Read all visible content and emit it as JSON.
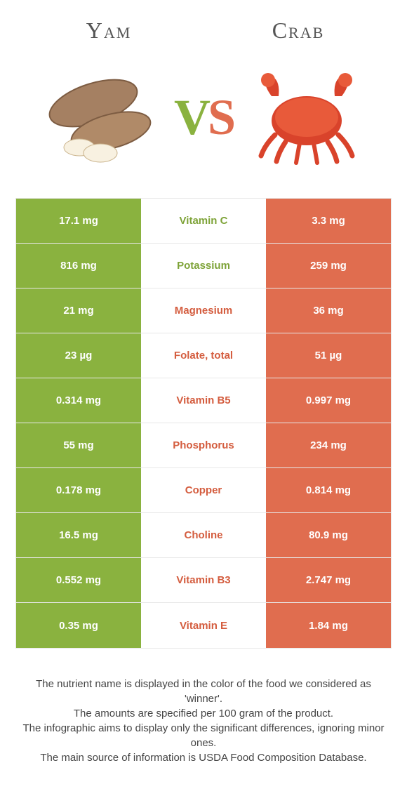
{
  "header": {
    "left": "Yam",
    "right": "Crab"
  },
  "vs": {
    "v": "V",
    "s": "S"
  },
  "colors": {
    "left": "#8ab23f",
    "right": "#e06d4f",
    "label_left": "#7ea338",
    "label_right": "#d45d3f"
  },
  "rows": [
    {
      "left": "17.1 mg",
      "label": "Vitamin C",
      "right": "3.3 mg",
      "winner": "left"
    },
    {
      "left": "816 mg",
      "label": "Potassium",
      "right": "259 mg",
      "winner": "left"
    },
    {
      "left": "21 mg",
      "label": "Magnesium",
      "right": "36 mg",
      "winner": "right"
    },
    {
      "left": "23 µg",
      "label": "Folate, total",
      "right": "51 µg",
      "winner": "right"
    },
    {
      "left": "0.314 mg",
      "label": "Vitamin B5",
      "right": "0.997 mg",
      "winner": "right"
    },
    {
      "left": "55 mg",
      "label": "Phosphorus",
      "right": "234 mg",
      "winner": "right"
    },
    {
      "left": "0.178 mg",
      "label": "Copper",
      "right": "0.814 mg",
      "winner": "right"
    },
    {
      "left": "16.5 mg",
      "label": "Choline",
      "right": "80.9 mg",
      "winner": "right"
    },
    {
      "left": "0.552 mg",
      "label": "Vitamin B3",
      "right": "2.747 mg",
      "winner": "right"
    },
    {
      "left": "0.35 mg",
      "label": "Vitamin E",
      "right": "1.84 mg",
      "winner": "right"
    }
  ],
  "footer": {
    "line1": "The nutrient name is displayed in the color of the food we considered as 'winner'.",
    "line2": "The amounts are specified per 100 gram of the product.",
    "line3": "The infographic aims to display only the significant differences, ignoring minor ones.",
    "line4": "The main source of information is USDA Food Composition Database."
  }
}
